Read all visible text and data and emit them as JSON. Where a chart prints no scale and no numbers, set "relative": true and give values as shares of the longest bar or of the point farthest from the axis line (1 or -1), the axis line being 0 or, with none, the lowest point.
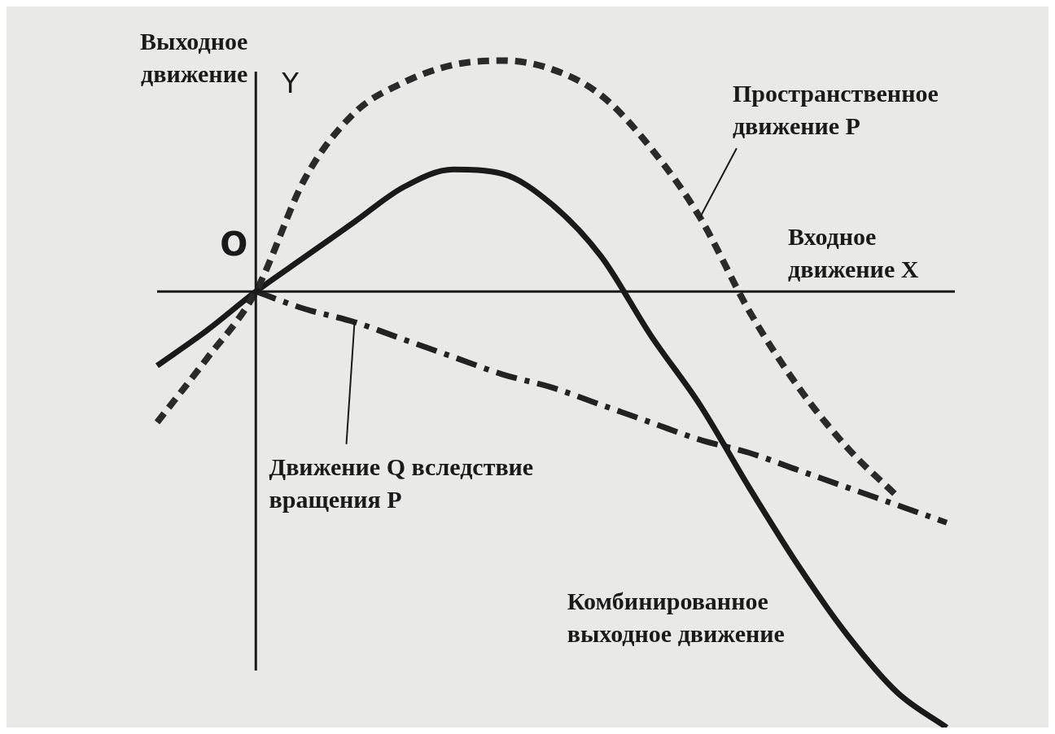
{
  "chart_data": {
    "type": "line",
    "relative": true,
    "xlabel": "Входное движение X",
    "ylabel": "Выходное движение",
    "annotations": [
      "Y",
      "O"
    ],
    "categories": [
      null,
      null,
      null,
      null,
      null,
      null,
      null,
      null,
      null,
      null,
      null,
      null,
      null,
      null,
      null,
      null,
      null
    ],
    "series": [
      {
        "name": "Пространственное движение P",
        "color": "#2a2a2a",
        "line_style": "dashed",
        "values": [
          -0.3,
          -0.155,
          0,
          0.26,
          0.41,
          0.48,
          0.52,
          0.53,
          0.51,
          0.45,
          0.33,
          0.17,
          -0.045,
          -0.22,
          -0.36,
          -0.47,
          null
        ]
      },
      {
        "name": "Комбинированное выходное движение",
        "color": "#1a1a1a",
        "line_style": "solid",
        "values": [
          -0.17,
          -0.09,
          0,
          0.08,
          0.16,
          0.24,
          0.28,
          0.27,
          0.2,
          0.08,
          -0.1,
          -0.26,
          -0.45,
          -0.63,
          -0.79,
          -0.92,
          -1
        ]
      },
      {
        "name": "Движение Q вследствие вращения P",
        "color": "#222222",
        "line_style": "dashdot",
        "values": [
          null,
          null,
          0,
          -0.04,
          -0.07,
          -0.11,
          -0.15,
          -0.19,
          -0.22,
          -0.26,
          -0.3,
          -0.34,
          -0.37,
          -0.41,
          -0.45,
          -0.49,
          -0.53
        ]
      }
    ],
    "legend": false,
    "marker": "none"
  }
}
